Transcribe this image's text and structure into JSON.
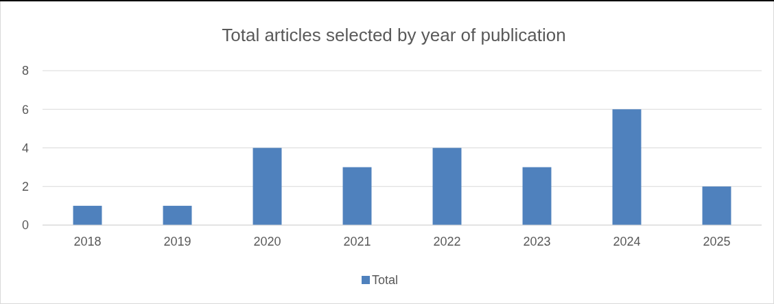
{
  "chart_data": {
    "type": "bar",
    "title": "Total articles selected by year of publication",
    "categories": [
      "2018",
      "2019",
      "2020",
      "2021",
      "2022",
      "2023",
      "2024",
      "2025"
    ],
    "series": [
      {
        "name": "Total",
        "color": "#4f81bd",
        "values": [
          1,
          1,
          4,
          3,
          4,
          3,
          6,
          2
        ]
      }
    ],
    "ylim": [
      0,
      8
    ],
    "yticks": [
      0,
      2,
      4,
      6,
      8
    ],
    "grid": "y",
    "legend": "bottom"
  }
}
